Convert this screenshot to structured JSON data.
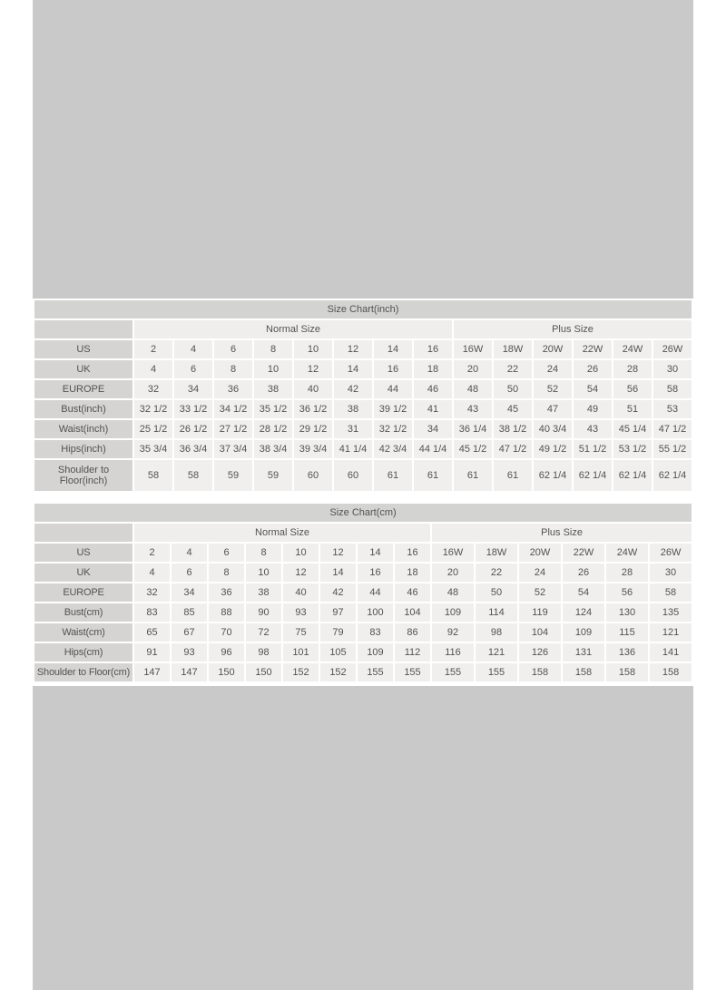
{
  "colors": {
    "placeholder_gray": "#c9c9c9",
    "title_bar_gray": "#d3d3d2",
    "label_cell_gray": "#d5d4d3",
    "data_cell_light": "#f0efee",
    "text_gray": "#525252"
  },
  "tables": [
    {
      "title": "Size Chart(inch)",
      "groups": [
        "Normal Size",
        "Plus Size"
      ],
      "rows": [
        {
          "label": "US",
          "values": [
            "2",
            "4",
            "6",
            "8",
            "10",
            "12",
            "14",
            "16",
            "16W",
            "18W",
            "20W",
            "22W",
            "24W",
            "26W"
          ]
        },
        {
          "label": "UK",
          "values": [
            "4",
            "6",
            "8",
            "10",
            "12",
            "14",
            "16",
            "18",
            "20",
            "22",
            "24",
            "26",
            "28",
            "30"
          ]
        },
        {
          "label": "EUROPE",
          "values": [
            "32",
            "34",
            "36",
            "38",
            "40",
            "42",
            "44",
            "46",
            "48",
            "50",
            "52",
            "54",
            "56",
            "58"
          ]
        },
        {
          "label": "Bust(inch)",
          "values": [
            "32 1/2",
            "33 1/2",
            "34 1/2",
            "35 1/2",
            "36 1/2",
            "38",
            "39 1/2",
            "41",
            "43",
            "45",
            "47",
            "49",
            "51",
            "53"
          ]
        },
        {
          "label": "Waist(inch)",
          "values": [
            "25 1/2",
            "26 1/2",
            "27 1/2",
            "28 1/2",
            "29 1/2",
            "31",
            "32 1/2",
            "34",
            "36 1/4",
            "38 1/2",
            "40 3/4",
            "43",
            "45 1/4",
            "47 1/2"
          ]
        },
        {
          "label": "Hips(inch)",
          "values": [
            "35 3/4",
            "36 3/4",
            "37 3/4",
            "38 3/4",
            "39 3/4",
            "41 1/4",
            "42 3/4",
            "44 1/4",
            "45 1/2",
            "47 1/2",
            "49 1/2",
            "51 1/2",
            "53 1/2",
            "55 1/2"
          ]
        },
        {
          "label": "Shoulder to Floor(inch)",
          "values": [
            "58",
            "58",
            "59",
            "59",
            "60",
            "60",
            "61",
            "61",
            "61",
            "61",
            "62 1/4",
            "62 1/4",
            "62 1/4",
            "62 1/4"
          ]
        }
      ]
    },
    {
      "title": "Size Chart(cm)",
      "groups": [
        "Normal Size",
        "Plus Size"
      ],
      "rows": [
        {
          "label": "US",
          "values": [
            "2",
            "4",
            "6",
            "8",
            "10",
            "12",
            "14",
            "16",
            "16W",
            "18W",
            "20W",
            "22W",
            "24W",
            "26W"
          ]
        },
        {
          "label": "UK",
          "values": [
            "4",
            "6",
            "8",
            "10",
            "12",
            "14",
            "16",
            "18",
            "20",
            "22",
            "24",
            "26",
            "28",
            "30"
          ]
        },
        {
          "label": "EUROPE",
          "values": [
            "32",
            "34",
            "36",
            "38",
            "40",
            "42",
            "44",
            "46",
            "48",
            "50",
            "52",
            "54",
            "56",
            "58"
          ]
        },
        {
          "label": "Bust(cm)",
          "values": [
            "83",
            "85",
            "88",
            "90",
            "93",
            "97",
            "100",
            "104",
            "109",
            "114",
            "119",
            "124",
            "130",
            "135"
          ]
        },
        {
          "label": "Waist(cm)",
          "values": [
            "65",
            "67",
            "70",
            "72",
            "75",
            "79",
            "83",
            "86",
            "92",
            "98",
            "104",
            "109",
            "115",
            "121"
          ]
        },
        {
          "label": "Hips(cm)",
          "values": [
            "91",
            "93",
            "96",
            "98",
            "101",
            "105",
            "109",
            "112",
            "116",
            "121",
            "126",
            "131",
            "136",
            "141"
          ]
        },
        {
          "label": "Shoulder to Floor(cm)",
          "values": [
            "147",
            "147",
            "150",
            "150",
            "152",
            "152",
            "155",
            "155",
            "155",
            "155",
            "158",
            "158",
            "158",
            "158"
          ]
        }
      ]
    }
  ]
}
